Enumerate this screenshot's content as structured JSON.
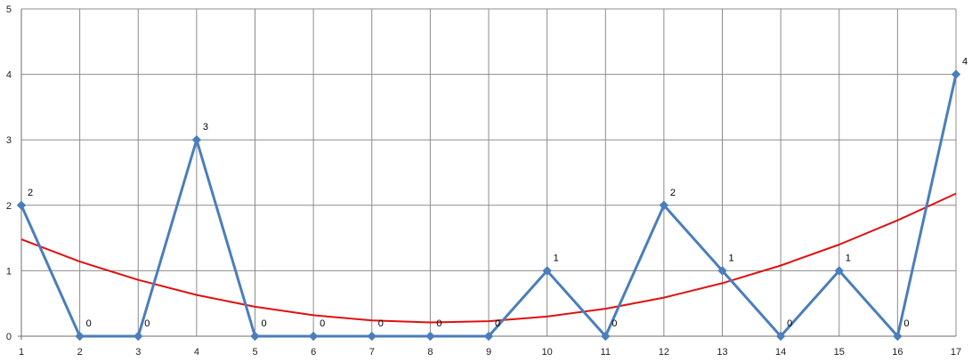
{
  "chart_data": {
    "type": "line",
    "categories": [
      "1",
      "2",
      "3",
      "4",
      "5",
      "6",
      "7",
      "8",
      "9",
      "10",
      "11",
      "12",
      "13",
      "14",
      "15",
      "16",
      "17"
    ],
    "x": [
      1,
      2,
      3,
      4,
      5,
      6,
      7,
      8,
      9,
      10,
      11,
      12,
      13,
      14,
      15,
      16,
      17
    ],
    "ylim": [
      0,
      5
    ],
    "xlim": [
      1,
      17
    ],
    "yticks": [
      "0",
      "1",
      "2",
      "3",
      "4",
      "5"
    ],
    "grid": true,
    "legend": "none",
    "series": [
      {
        "values": [
          2,
          0,
          0,
          3,
          0,
          0,
          0,
          0,
          0,
          1,
          0,
          2,
          1,
          0,
          1,
          0,
          4
        ],
        "data_labels": [
          "2",
          "0",
          "0",
          "3",
          "0",
          "0",
          "0",
          "0",
          "0",
          "1",
          "0",
          "2",
          "1",
          "0",
          "1",
          "0",
          "4"
        ],
        "color": "#4a7ebb",
        "marker": "diamond"
      }
    ],
    "trendline": {
      "kind": "polynomial",
      "color": "#e01010",
      "x": [
        1,
        2,
        3,
        4,
        5,
        6,
        7,
        8,
        9,
        10,
        11,
        12,
        13,
        14,
        15,
        16,
        17
      ],
      "values": [
        1.48,
        1.14,
        0.86,
        0.63,
        0.45,
        0.32,
        0.24,
        0.21,
        0.23,
        0.3,
        0.42,
        0.59,
        0.81,
        1.08,
        1.4,
        1.77,
        2.18
      ]
    }
  }
}
